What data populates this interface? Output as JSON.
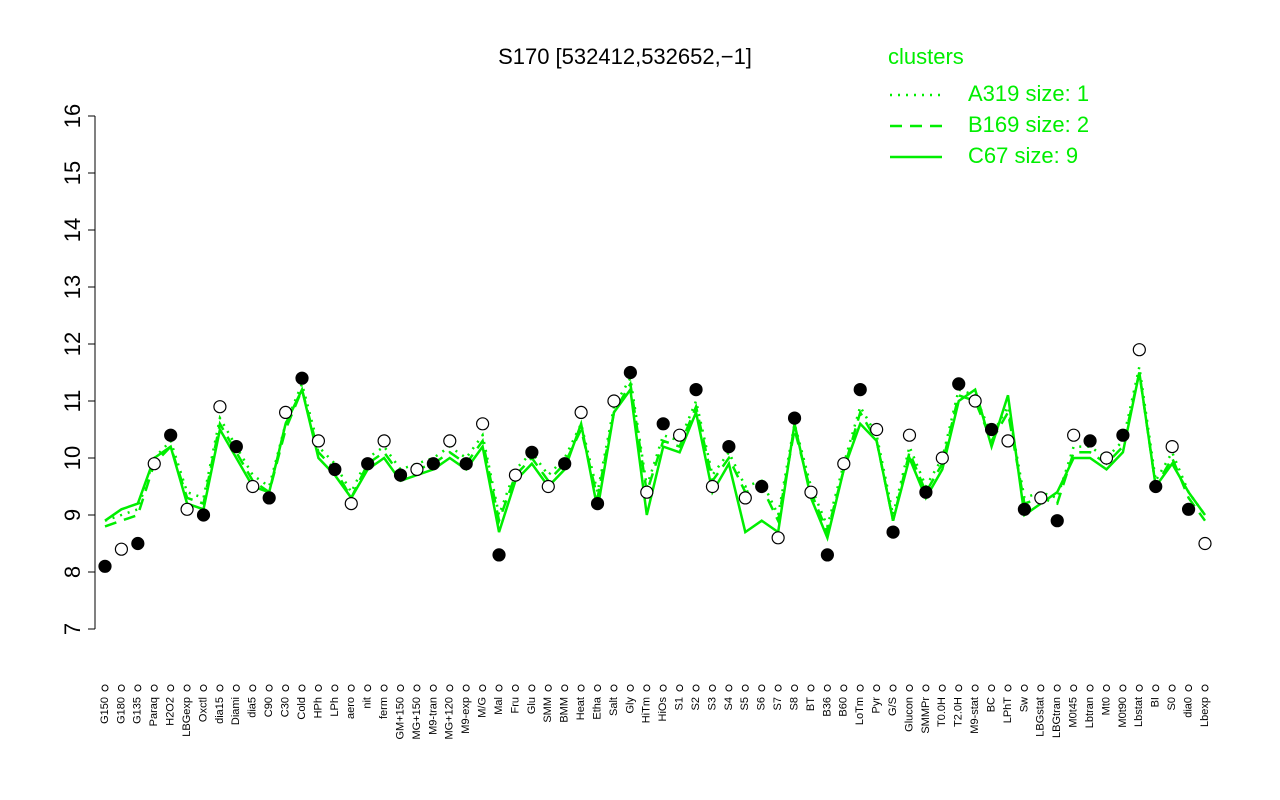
{
  "chart_data": {
    "type": "line",
    "title": "S170 [532412,532652,−1]",
    "legend_title": "clusters",
    "legend_position": "top-right",
    "categories": [
      "G150",
      "G180",
      "G135",
      "Paraq",
      "H2O2",
      "LBGexp",
      "Oxctl",
      "dia15",
      "Diami",
      "dia5",
      "C90",
      "C30",
      "Cold",
      "HPh",
      "LPh",
      "aero",
      "nit",
      "ferm",
      "GM+150",
      "MG+150",
      "M9-tran",
      "MG+120",
      "M9-exp",
      "M/G",
      "Mal",
      "Fru",
      "Glu",
      "SMM",
      "BMM",
      "Heat",
      "Etha",
      "Salt",
      "Gly",
      "HiTm",
      "HiOs",
      "S1",
      "S2",
      "S3",
      "S4",
      "S5",
      "S6",
      "S7",
      "S8",
      "BT",
      "B36",
      "B60",
      "LoTm",
      "Pyr",
      "G/S",
      "Glucon",
      "SMMPr",
      "T0.0H",
      "T2.0H",
      "M9-stat",
      "BC",
      "LPhT",
      "Sw",
      "LBGstat",
      "LBGtran",
      "M0t45",
      "Lbtran",
      "Mt0",
      "M0t90",
      "Lbstat",
      "BI",
      "S0",
      "dia0",
      "Lbexp"
    ],
    "values": [
      8.1,
      8.4,
      8.5,
      9.9,
      10.4,
      9.1,
      9.0,
      10.9,
      10.2,
      9.5,
      9.3,
      10.8,
      11.4,
      10.3,
      9.8,
      9.2,
      9.9,
      10.3,
      9.7,
      9.8,
      9.9,
      10.3,
      9.9,
      10.6,
      8.3,
      9.7,
      10.1,
      9.5,
      9.9,
      10.8,
      9.2,
      11.0,
      11.5,
      9.4,
      10.6,
      10.4,
      11.2,
      9.5,
      10.2,
      9.3,
      9.5,
      8.6,
      10.7,
      9.4,
      8.3,
      9.9,
      11.2,
      10.5,
      8.7,
      10.4,
      9.4,
      10.0,
      11.3,
      11.0,
      10.5,
      10.3,
      9.1,
      9.3,
      8.9,
      10.4,
      10.3,
      10.0,
      10.4,
      11.9,
      9.5,
      10.2,
      9.1,
      8.5
    ],
    "marker_color": "#000000",
    "series": [
      {
        "name": "A319 size: 1",
        "color": "#00ee00",
        "style": "dotted",
        "values": [
          8.9,
          9.0,
          9.1,
          10.0,
          10.3,
          9.4,
          9.3,
          10.7,
          10.2,
          9.7,
          9.5,
          10.6,
          11.3,
          10.2,
          9.9,
          9.4,
          10.0,
          10.2,
          9.8,
          9.9,
          10.0,
          10.2,
          10.0,
          10.4,
          9.0,
          9.8,
          10.1,
          9.7,
          10.0,
          10.6,
          9.4,
          10.9,
          11.4,
          9.5,
          10.4,
          10.3,
          11.0,
          9.7,
          10.1,
          9.5,
          9.6,
          9.0,
          10.6,
          9.5,
          8.8,
          9.9,
          10.9,
          10.4,
          9.0,
          10.2,
          9.5,
          10.0,
          11.2,
          11.1,
          10.4,
          10.9,
          9.3,
          9.4,
          9.3,
          10.2,
          10.2,
          10.0,
          10.3,
          11.6,
          9.6,
          10.1,
          9.4,
          9.0
        ]
      },
      {
        "name": "B169 size: 2",
        "color": "#00ee00",
        "style": "dashed",
        "values": [
          8.8,
          8.9,
          9.0,
          9.9,
          10.2,
          9.3,
          9.2,
          10.6,
          10.1,
          9.6,
          9.4,
          10.5,
          11.2,
          10.1,
          9.8,
          9.3,
          9.9,
          10.1,
          9.7,
          9.8,
          9.9,
          10.1,
          9.9,
          10.3,
          8.9,
          9.7,
          10.0,
          9.6,
          9.9,
          10.5,
          9.3,
          10.8,
          11.3,
          9.4,
          10.3,
          10.2,
          10.9,
          9.6,
          10.0,
          9.4,
          9.5,
          8.9,
          10.5,
          9.4,
          8.7,
          9.8,
          10.8,
          10.3,
          8.9,
          10.1,
          9.4,
          9.9,
          11.1,
          11.0,
          10.3,
          10.8,
          9.2,
          9.3,
          9.2,
          10.1,
          10.1,
          9.9,
          10.2,
          11.5,
          9.5,
          10.0,
          9.3,
          8.9
        ]
      },
      {
        "name": "C67 size: 9",
        "color": "#00ee00",
        "style": "solid",
        "values": [
          8.9,
          9.1,
          9.2,
          10.0,
          10.2,
          9.2,
          9.1,
          10.5,
          10.0,
          9.5,
          9.4,
          10.6,
          11.2,
          10.0,
          9.7,
          9.3,
          9.8,
          10.0,
          9.6,
          9.7,
          9.8,
          10.0,
          9.8,
          10.2,
          8.7,
          9.6,
          9.9,
          9.5,
          9.8,
          10.6,
          9.1,
          10.8,
          11.2,
          9.0,
          10.2,
          10.1,
          10.8,
          9.4,
          9.9,
          8.7,
          8.9,
          8.7,
          10.6,
          9.3,
          8.6,
          9.8,
          10.6,
          10.3,
          8.9,
          10.0,
          9.3,
          9.8,
          11.0,
          11.2,
          10.2,
          11.1,
          9.0,
          9.2,
          9.4,
          10.0,
          10.0,
          9.8,
          10.1,
          11.5,
          9.5,
          9.9,
          9.4,
          9.0
        ]
      }
    ],
    "ylim": [
      7,
      16
    ],
    "yticks": [
      7,
      8,
      9,
      10,
      11,
      12,
      13,
      14,
      15,
      16
    ]
  }
}
